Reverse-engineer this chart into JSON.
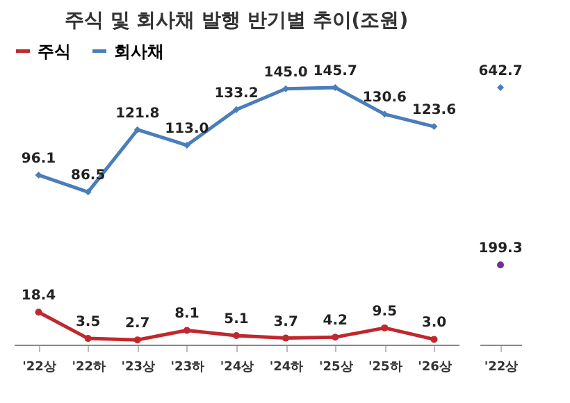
{
  "chart_data": [
    {
      "type": "line",
      "title": "주식 및 회사채 발행 반기별 추이(조원)",
      "categories": [
        "'22상",
        "'22하",
        "'23상",
        "'23하",
        "'24상",
        "'24하",
        "'25상",
        "'25하",
        "'26상"
      ],
      "series": [
        {
          "name": "주식",
          "color": "#c0282d",
          "marker": "circle",
          "values": [
            18.4,
            3.5,
            2.7,
            8.1,
            5.1,
            3.7,
            4.2,
            9.5,
            3.0
          ],
          "value_labels": [
            "18.4",
            "3.5",
            "2.7",
            "8.1",
            "5.1",
            "3.7",
            "4.2",
            "9.5",
            "3.0"
          ]
        },
        {
          "name": "회사채",
          "color": "#4a7ebb",
          "marker": "diamond",
          "values": [
            96.1,
            86.5,
            121.8,
            113.0,
            133.2,
            145.0,
            145.7,
            130.6,
            123.6
          ],
          "value_labels": [
            "96.1",
            "86.5",
            "121.8",
            "113.0",
            "133.2",
            "145.0",
            "145.7",
            "130.6",
            "123.6"
          ]
        }
      ],
      "legend": "top left",
      "grid": false
    },
    {
      "type": "other",
      "categories": [
        "'22상"
      ],
      "series": [
        {
          "color": "#4a7ebb",
          "marker": "diamond",
          "values": [
            642.7
          ]
        },
        {
          "color": "#7030a0",
          "marker": "circle",
          "values": [
            199.3
          ]
        }
      ],
      "data_labels": true
    }
  ]
}
